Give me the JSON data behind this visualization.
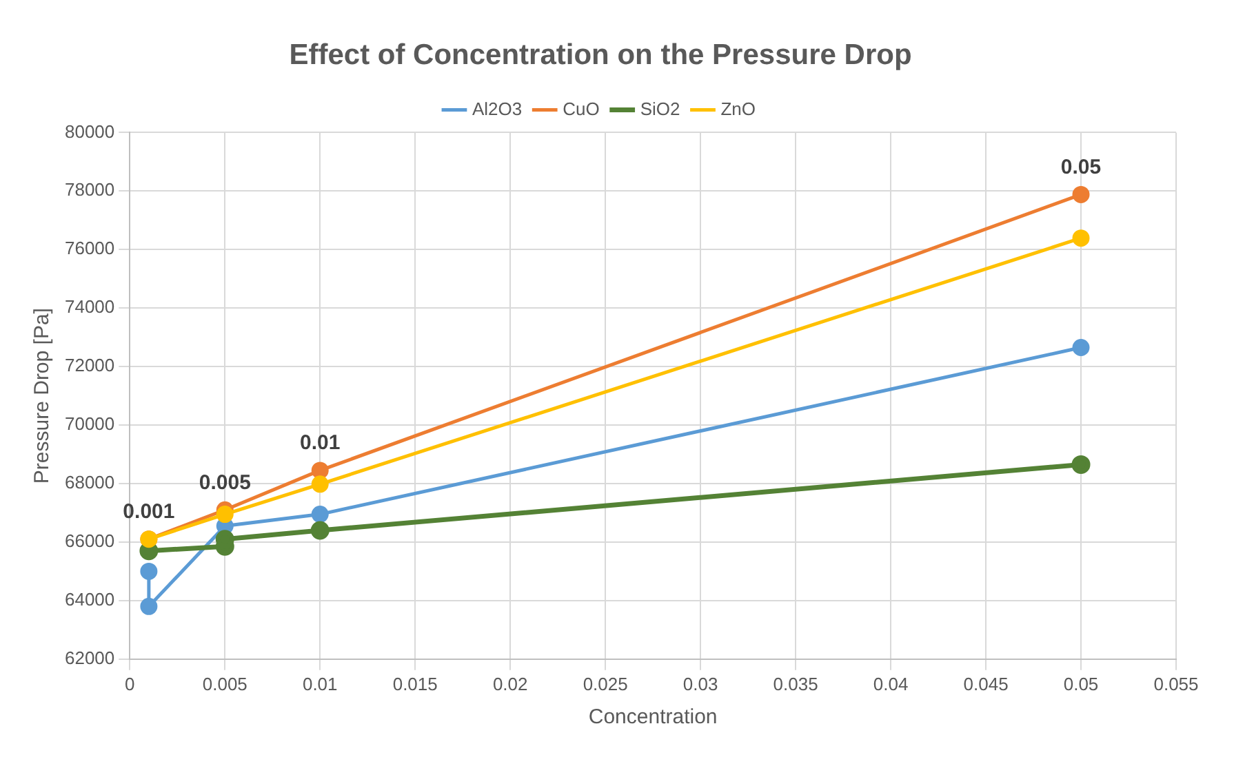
{
  "chart_data": {
    "type": "line",
    "title": "Effect of Concentration on the Pressure Drop",
    "xlabel": "Concentration",
    "ylabel": "Pressure Drop [Pa]",
    "xlim": [
      0,
      0.055
    ],
    "xticks": [
      0,
      0.005,
      0.01,
      0.015,
      0.02,
      0.025,
      0.03,
      0.035,
      0.04,
      0.045,
      0.05,
      0.055
    ],
    "ylim": [
      62000,
      80000
    ],
    "yticks": [
      62000,
      64000,
      66000,
      68000,
      70000,
      72000,
      74000,
      76000,
      78000,
      80000
    ],
    "grid": true,
    "legend": "top",
    "marker": "circle",
    "line_style": "solid",
    "series": [
      {
        "name": "Al2O3",
        "color": "#5b9bd5",
        "x": [
          0.001,
          0.001,
          0.005,
          0.01,
          0.05
        ],
        "values": [
          65000,
          63800,
          66550,
          66950,
          72650
        ]
      },
      {
        "name": "CuO",
        "color": "#ed7d31",
        "x": [
          0.001,
          0.005,
          0.01,
          0.05
        ],
        "values": [
          66100,
          67100,
          68450,
          77880
        ]
      },
      {
        "name": "SiO2",
        "color": "#548235",
        "x": [
          0.001,
          0.005,
          0.005,
          0.01,
          0.05
        ],
        "values": [
          65700,
          65850,
          66100,
          66400,
          68650
        ]
      },
      {
        "name": "ZnO",
        "color": "#ffc000",
        "x": [
          0.001,
          0.005,
          0.01,
          0.05
        ],
        "values": [
          66100,
          66950,
          67980,
          76390
        ]
      }
    ],
    "annotations": [
      {
        "text": "0.001",
        "x": 0.001,
        "y": 66100
      },
      {
        "text": "0.005",
        "x": 0.005,
        "y": 67100
      },
      {
        "text": "0.01",
        "x": 0.01,
        "y": 68450
      },
      {
        "text": "0.05",
        "x": 0.05,
        "y": 77880
      }
    ]
  }
}
